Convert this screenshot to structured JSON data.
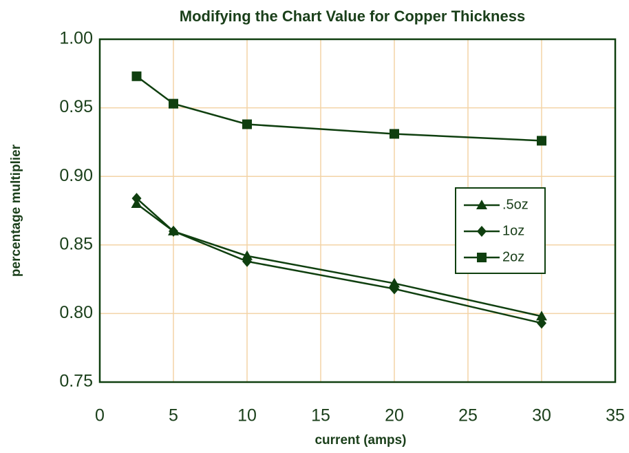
{
  "chart_data": {
    "type": "line",
    "title": "Modifying the Chart Value for Copper Thickness",
    "x_label": "current (amps)",
    "y_label": "percentage multiplier",
    "x": [
      2.5,
      5,
      10,
      20,
      30
    ],
    "series": [
      {
        "name": ".5oz",
        "color": "#0f3f0f",
        "marker": "triangle",
        "values": [
          0.88,
          0.86,
          0.842,
          0.822,
          0.798
        ]
      },
      {
        "name": "1oz",
        "color": "#0f3f0f",
        "marker": "diamond",
        "values": [
          0.884,
          0.86,
          0.838,
          0.818,
          0.793
        ]
      },
      {
        "name": "2oz",
        "color": "#0f3f0f",
        "marker": "square",
        "values": [
          0.973,
          0.953,
          0.938,
          0.931,
          0.926
        ]
      }
    ],
    "xlim": [
      0,
      35
    ],
    "xticks": [
      0,
      5,
      10,
      15,
      20,
      25,
      30,
      35
    ],
    "ylim": [
      0.75,
      1
    ],
    "yticks": [
      {
        "value": 0.75,
        "label": "0.75"
      },
      {
        "value": 0.8,
        "label": "0.80"
      },
      0.85,
      {
        "value": 0.9,
        "label": "0.90"
      },
      0.95,
      {
        "value": 1,
        "label": "1.00"
      }
    ],
    "grid": true,
    "legend": "right"
  }
}
